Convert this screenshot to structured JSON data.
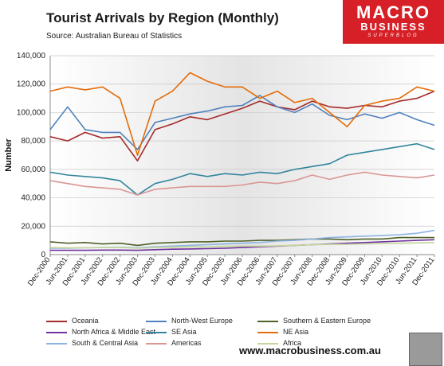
{
  "header": {
    "title": "Tourist Arrivals by Region (Monthly)",
    "source": "Source: Australian Bureau of Statistics"
  },
  "logo": {
    "line1": "MACRO",
    "line2": "BUSINESS",
    "line3": "SUPERBLOG"
  },
  "footer": {
    "url": "www.macrobusiness.com.au"
  },
  "chart_data": {
    "type": "line",
    "title": "Tourist Arrivals by Region (Monthly)",
    "xlabel": "",
    "ylabel": "Number",
    "ylim": [
      0,
      140000
    ],
    "yticks": [
      0,
      20000,
      40000,
      60000,
      80000,
      100000,
      120000,
      140000
    ],
    "ytick_labels": [
      "0",
      "20,000",
      "40,000",
      "60,000",
      "80,000",
      "100,000",
      "120,000",
      "140,000"
    ],
    "x": [
      "Dec-2000",
      "Jun-2001",
      "Dec-2001",
      "Jun-2002",
      "Dec-2002",
      "Jun-2003",
      "Dec-2003",
      "Jun-2004",
      "Dec-2004",
      "Jun-2005",
      "Dec-2005",
      "Jun-2006",
      "Dec-2006",
      "Jun-2007",
      "Dec-2007",
      "Jun-2008",
      "Dec-2008",
      "Jun-2009",
      "Dec-2009",
      "Jun-2010",
      "Dec-2010",
      "Jun-2011",
      "Dec-2011"
    ],
    "grid": true,
    "legend_position": "bottom",
    "series": [
      {
        "name": "Oceania",
        "color": "#a52a2a",
        "values": [
          83000,
          80000,
          86000,
          82000,
          83000,
          66000,
          88000,
          92000,
          97000,
          95000,
          99000,
          103000,
          108000,
          104000,
          102000,
          108000,
          104000,
          103000,
          105000,
          104000,
          108000,
          110000,
          115000
        ]
      },
      {
        "name": "North-West Europe",
        "color": "#4f81bd",
        "values": [
          88000,
          104000,
          88000,
          86000,
          86000,
          74000,
          93000,
          96000,
          99000,
          101000,
          104000,
          105000,
          112000,
          104000,
          100000,
          106000,
          98000,
          95000,
          99000,
          96000,
          100000,
          95000,
          91000
        ]
      },
      {
        "name": "Southern & Eastern Europe",
        "color": "#4f6228",
        "values": [
          9000,
          8000,
          8500,
          7500,
          8000,
          6500,
          8000,
          8500,
          9000,
          9000,
          9500,
          9500,
          10000,
          10000,
          10500,
          11000,
          11000,
          10500,
          11000,
          11000,
          12000,
          12000,
          12000
        ]
      },
      {
        "name": "North Africa & Middle East",
        "color": "#7030a0",
        "values": [
          3000,
          3000,
          3000,
          3200,
          3200,
          3000,
          3500,
          3800,
          4000,
          4200,
          4500,
          5000,
          5500,
          6000,
          6500,
          7000,
          7500,
          8000,
          8500,
          9000,
          9500,
          10000,
          10500
        ]
      },
      {
        "name": "SE Asia",
        "color": "#31859c",
        "values": [
          58000,
          56000,
          55000,
          54000,
          52000,
          42000,
          50000,
          53000,
          57000,
          55000,
          57000,
          56000,
          58000,
          57000,
          60000,
          62000,
          64000,
          70000,
          72000,
          74000,
          76000,
          78000,
          74000
        ]
      },
      {
        "name": "NE Asia",
        "color": "#e46c0a",
        "values": [
          115000,
          118000,
          116000,
          118000,
          110000,
          70000,
          108000,
          115000,
          128000,
          122000,
          118000,
          118000,
          110000,
          115000,
          107000,
          110000,
          100000,
          90000,
          105000,
          108000,
          110000,
          118000,
          115000
        ]
      },
      {
        "name": "South & Central Asia",
        "color": "#8eb4e3",
        "values": [
          4500,
          4500,
          4800,
          5000,
          5200,
          4800,
          5500,
          6000,
          6500,
          7000,
          7500,
          8000,
          8500,
          9500,
          10000,
          11000,
          12000,
          12500,
          13000,
          13500,
          14000,
          15000,
          17000
        ]
      },
      {
        "name": "Americas",
        "color": "#d99694",
        "values": [
          52000,
          50000,
          48000,
          47000,
          46000,
          42000,
          46000,
          47000,
          48000,
          48000,
          48000,
          49000,
          51000,
          50000,
          52000,
          56000,
          53000,
          56000,
          58000,
          56000,
          55000,
          54000,
          56000
        ]
      },
      {
        "name": "Africa",
        "color": "#c3d69b",
        "values": [
          5000,
          4800,
          4800,
          5000,
          5000,
          4500,
          5000,
          5200,
          5500,
          5500,
          5800,
          6000,
          6000,
          6200,
          6500,
          7000,
          7200,
          7300,
          7500,
          7800,
          8000,
          8300,
          8500
        ]
      }
    ]
  }
}
